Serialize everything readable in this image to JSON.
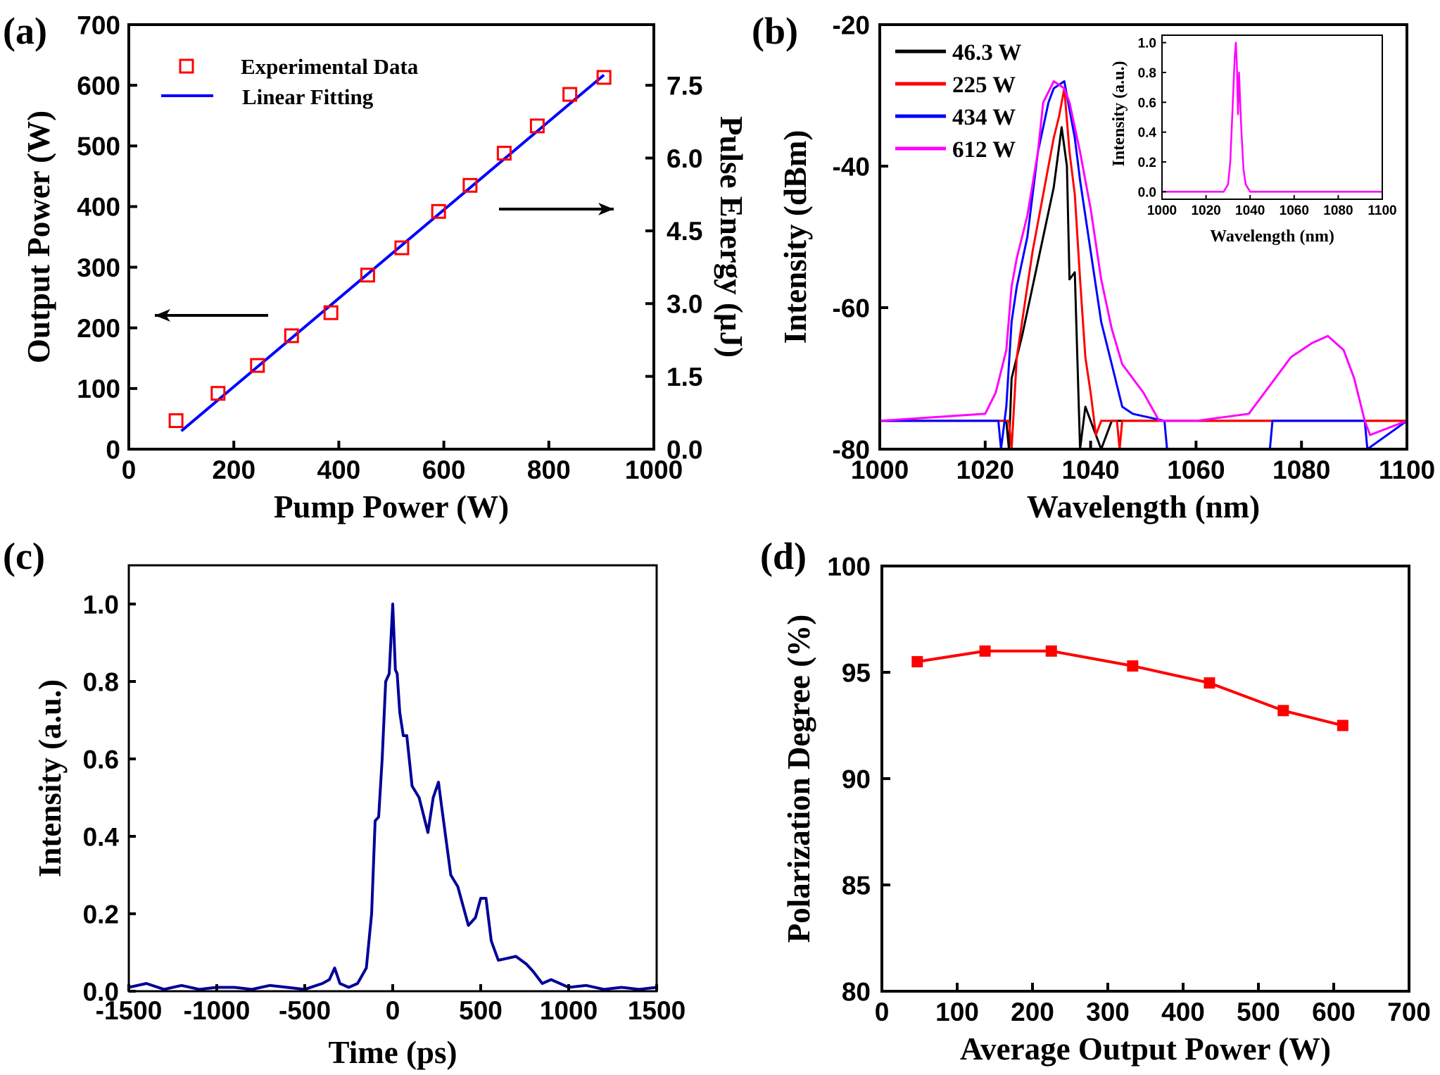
{
  "chart_data": [
    {
      "panel": "(a)",
      "type": "scatter",
      "xlabel": "Pump Power (W)",
      "ylabel": "Output Power (W)",
      "ylabel_right": "Pulse Energy (μJ)",
      "xlim": [
        0,
        1000
      ],
      "ylim": [
        0,
        700
      ],
      "ylim_right": [
        0,
        8.75
      ],
      "xticks": [
        0,
        200,
        400,
        600,
        800,
        1000
      ],
      "yticks": [
        0,
        100,
        200,
        300,
        400,
        500,
        600,
        700
      ],
      "yticks_right": [
        "0.0",
        "1.5",
        "3.0",
        "4.5",
        "6.0",
        "7.5"
      ],
      "legend_placement": "top-left",
      "series": [
        {
          "name": "Experimental Data",
          "kind": "open-square",
          "color": "#ff0000",
          "x": [
            90,
            170,
            245,
            310,
            385,
            455,
            520,
            590,
            650,
            715,
            778,
            840,
            905
          ],
          "y": [
            47,
            92,
            138,
            187,
            225,
            287,
            332,
            392,
            435,
            488,
            533,
            585,
            613
          ]
        },
        {
          "name": "Linear Fitting",
          "kind": "line",
          "color": "#0000ff",
          "x": [
            100,
            905
          ],
          "y": [
            30,
            617
          ]
        }
      ],
      "annotations": [
        "arrow-left-to-left-axis",
        "arrow-right-to-right-axis"
      ]
    },
    {
      "panel": "(b)",
      "type": "line",
      "xlabel": "Wavelength (nm)",
      "ylabel": "Intensity (dBm)",
      "xlim": [
        1000,
        1100
      ],
      "ylim": [
        -80,
        -20
      ],
      "xticks": [
        1000,
        1020,
        1040,
        1060,
        1080,
        1100
      ],
      "yticks": [
        -80,
        -60,
        -40,
        -20
      ],
      "legend_placement": "top-left",
      "series": [
        {
          "name": "46.3 W",
          "color": "#000000",
          "x": [
            1000,
            1024,
            1024.5,
            1025,
            1027,
            1029,
            1031,
            1033,
            1034.5,
            1035.5,
            1036,
            1037,
            1038,
            1039,
            1041,
            1042,
            1044,
            1100
          ],
          "y": [
            -76,
            -76,
            -80,
            -70,
            -64,
            -57,
            -50,
            -43,
            -34.5,
            -40,
            -56,
            -55,
            -80,
            -74,
            -78,
            -80,
            -76,
            -76
          ]
        },
        {
          "name": "225 W",
          "color": "#ff0000",
          "x": [
            1000,
            1024.5,
            1025,
            1026,
            1027,
            1029,
            1031,
            1033,
            1034,
            1035,
            1036,
            1037,
            1038,
            1039,
            1040,
            1041,
            1042,
            1045,
            1045.5,
            1046,
            1100
          ],
          "y": [
            -76,
            -76,
            -80,
            -67,
            -62,
            -52,
            -44,
            -36,
            -33,
            -29,
            -38,
            -44,
            -56,
            -67,
            -72,
            -78,
            -76,
            -76,
            -80,
            -76,
            -76
          ]
        },
        {
          "name": "434 W",
          "color": "#0000ff",
          "x": [
            1000,
            1022.5,
            1023,
            1024,
            1025,
            1026,
            1028,
            1030,
            1032,
            1033,
            1035,
            1036,
            1037,
            1038,
            1040,
            1042,
            1044,
            1046,
            1048,
            1054,
            1054.5,
            1074,
            1074.5,
            1092,
            1092.5,
            1100
          ],
          "y": [
            -76,
            -76,
            -80,
            -74,
            -62,
            -57,
            -50,
            -38,
            -31,
            -29,
            -28,
            -32,
            -36,
            -42,
            -52,
            -62,
            -68,
            -74,
            -75,
            -76,
            -80,
            -80,
            -76,
            -76,
            -80,
            -76
          ]
        },
        {
          "name": "612 W",
          "color": "#ff00ff",
          "x": [
            1000,
            1020,
            1022,
            1024,
            1025,
            1026,
            1028,
            1030,
            1031,
            1033,
            1035,
            1036,
            1038,
            1040,
            1042,
            1044,
            1046,
            1048,
            1050,
            1053,
            1060,
            1070,
            1072,
            1075,
            1078,
            1082,
            1085,
            1088,
            1090,
            1092,
            1093,
            1100
          ],
          "y": [
            -76,
            -75,
            -72,
            -66,
            -57,
            -53,
            -47,
            -38,
            -31,
            -28,
            -29,
            -31,
            -38,
            -46,
            -56,
            -63,
            -68,
            -70,
            -72,
            -76,
            -76,
            -75,
            -73,
            -70,
            -67,
            -65,
            -64,
            -66,
            -70,
            -76,
            -78,
            -76
          ]
        }
      ],
      "inset": {
        "type": "line",
        "xlabel": "Wavelength (nm)",
        "ylabel": "Intensity (a.u.)",
        "xlim": [
          1000,
          1100
        ],
        "ylim": [
          -0.05,
          1.05
        ],
        "xticks": [
          1000,
          1020,
          1040,
          1060,
          1080,
          1100
        ],
        "yticks": [
          "0.0",
          "0.2",
          "0.4",
          "0.6",
          "0.8",
          "1.0"
        ],
        "color": "#ff00ff",
        "x": [
          1000,
          1028,
          1030,
          1031,
          1032,
          1033,
          1033.5,
          1034,
          1034.5,
          1035,
          1035.5,
          1036,
          1037,
          1038,
          1040,
          1100
        ],
        "y": [
          0,
          0,
          0.05,
          0.2,
          0.55,
          0.9,
          1.0,
          0.85,
          0.52,
          0.8,
          0.6,
          0.42,
          0.15,
          0.05,
          0,
          0
        ]
      }
    },
    {
      "panel": "(c)",
      "type": "line",
      "xlabel": "Time (ps)",
      "ylabel": "Intensity (a.u.)",
      "xlim": [
        -1500,
        1500
      ],
      "ylim": [
        0,
        1.1
      ],
      "xticks": [
        -1500,
        -1000,
        -500,
        0,
        500,
        1000,
        1500
      ],
      "yticks": [
        "0.0",
        "0.2",
        "0.4",
        "0.6",
        "0.8",
        "1.0"
      ],
      "color": "#000099",
      "x": [
        -1500,
        -1400,
        -1300,
        -1200,
        -1100,
        -1000,
        -900,
        -800,
        -700,
        -600,
        -500,
        -400,
        -360,
        -330,
        -300,
        -250,
        -200,
        -150,
        -120,
        -100,
        -80,
        -60,
        -40,
        -20,
        0,
        15,
        25,
        40,
        60,
        80,
        110,
        150,
        200,
        230,
        260,
        280,
        330,
        370,
        430,
        470,
        500,
        530,
        560,
        600,
        650,
        700,
        760,
        800,
        850,
        900,
        1000,
        1100,
        1200,
        1300,
        1400,
        1500
      ],
      "y": [
        0.01,
        0.02,
        0.005,
        0.015,
        0.005,
        0.01,
        0.01,
        0.005,
        0.015,
        0.01,
        0.005,
        0.02,
        0.03,
        0.06,
        0.02,
        0.01,
        0.02,
        0.06,
        0.2,
        0.44,
        0.45,
        0.6,
        0.8,
        0.82,
        1.0,
        0.83,
        0.82,
        0.72,
        0.66,
        0.66,
        0.53,
        0.5,
        0.41,
        0.5,
        0.54,
        0.47,
        0.3,
        0.27,
        0.17,
        0.19,
        0.24,
        0.24,
        0.13,
        0.08,
        0.085,
        0.09,
        0.07,
        0.05,
        0.02,
        0.03,
        0.01,
        0.015,
        0.005,
        0.01,
        0.005,
        0.01
      ]
    },
    {
      "panel": "(d)",
      "type": "line",
      "xlabel": "Average Output Power (W)",
      "ylabel": "Polarization Degree (%)",
      "xlim": [
        0,
        700
      ],
      "ylim": [
        80,
        100
      ],
      "xticks": [
        0,
        100,
        200,
        300,
        400,
        500,
        600,
        700
      ],
      "yticks": [
        80,
        85,
        90,
        95,
        100
      ],
      "color": "#ff0000",
      "marker": "filled-square",
      "x": [
        47,
        137,
        225,
        333,
        435,
        533,
        612
      ],
      "y": [
        95.5,
        96.0,
        96.0,
        95.3,
        94.5,
        93.2,
        92.5
      ]
    }
  ]
}
